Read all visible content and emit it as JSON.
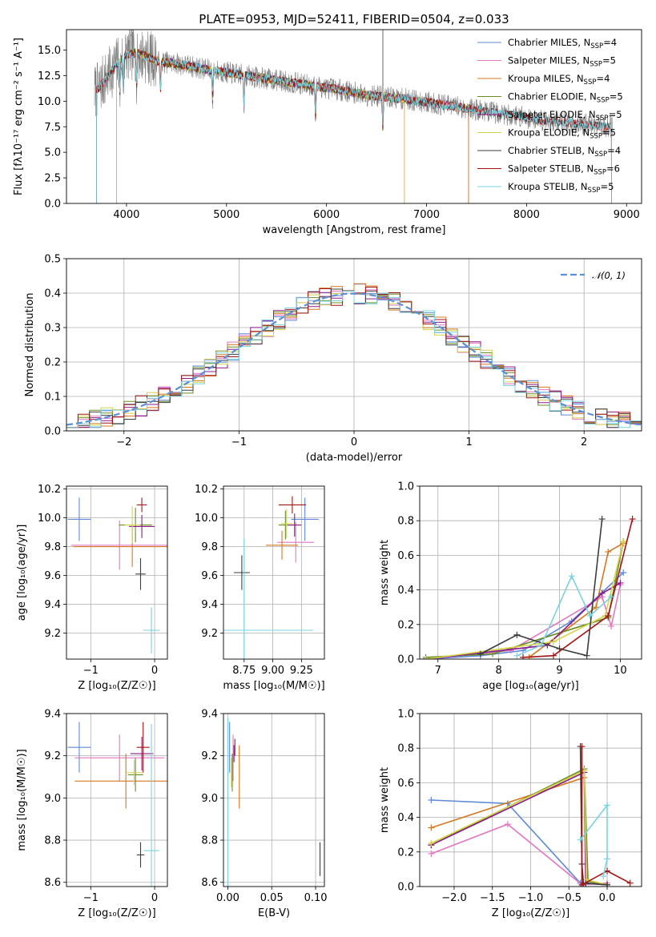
{
  "colors": {
    "Chabrier MILES": "#5f8bd6",
    "Salpeter MILES": "#e377c2",
    "Kroupa MILES": "#d4781d",
    "Chabrier ELODIE": "#6b8e23",
    "Salpeter ELODIE": "#8b1a8b",
    "Kroupa ELODIE": "#d4d44a",
    "Chabrier STELIB": "#3d3d3d",
    "Salpeter STELIB": "#a31515",
    "Kroupa STELIB": "#79d3df",
    "normal": "#5b8fd6",
    "grid": "#b0b0b0",
    "spectrum_data": "#7f7f7f"
  },
  "chart_data": [
    {
      "id": "spectrum",
      "type": "line",
      "title": "PLATE=0953, MJD=52411, FIBERID=0504, z=0.033",
      "xlabel": "wavelength [Angstrom, rest frame]",
      "ylabel": "Flux [fλ10⁻¹⁷ erg cm⁻² s⁻¹ A⁻¹]",
      "xlim": [
        3400,
        9150
      ],
      "ylim": [
        0,
        17
      ],
      "xticks": [
        4000,
        5000,
        6000,
        7000,
        8000,
        9000
      ],
      "yticks": [
        0.0,
        2.5,
        5.0,
        7.5,
        10.0,
        12.5,
        15.0
      ],
      "ytick_labels": [
        "0.0",
        "2.5",
        "5.0",
        "7.5",
        "10.0",
        "12.5",
        "15.0"
      ],
      "grid": false,
      "legend": "upper right",
      "legend_entries": [
        {
          "label": "Chabrier MILES, N",
          "sub": "SSP",
          "tail": "=4",
          "color_key": "Chabrier MILES"
        },
        {
          "label": "Salpeter MILES, N",
          "sub": "SSP",
          "tail": "=5",
          "color_key": "Salpeter MILES"
        },
        {
          "label": "Kroupa MILES, N",
          "sub": "SSP",
          "tail": "=4",
          "color_key": "Kroupa MILES"
        },
        {
          "label": "Chabrier ELODIE, N",
          "sub": "SSP",
          "tail": "=5",
          "color_key": "Chabrier ELODIE"
        },
        {
          "label": "Salpeter ELODIE, N",
          "sub": "SSP",
          "tail": "=5",
          "color_key": "Salpeter ELODIE"
        },
        {
          "label": "Kroupa ELODIE, N",
          "sub": "SSP",
          "tail": "=5",
          "color_key": "Kroupa ELODIE"
        },
        {
          "label": "Chabrier STELIB, N",
          "sub": "SSP",
          "tail": "=4",
          "color_key": "Chabrier STELIB"
        },
        {
          "label": "Salpeter STELIB, N",
          "sub": "SSP",
          "tail": "=6",
          "color_key": "Salpeter STELIB"
        },
        {
          "label": "Kroupa STELIB, N",
          "sub": "SSP",
          "tail": "=5",
          "color_key": "Kroupa STELIB"
        }
      ],
      "continuum": {
        "x": [
          3700,
          3800,
          3900,
          4000,
          4100,
          4200,
          4300,
          4400,
          4500,
          4600,
          4800,
          5000,
          5200,
          5400,
          5600,
          5800,
          6000,
          6200,
          6400,
          6600,
          6800,
          7000,
          7200,
          7400,
          7600,
          7800,
          8000,
          8200,
          8400,
          8600,
          8800
        ],
        "y": [
          11.0,
          12.3,
          13.6,
          14.6,
          14.7,
          14.4,
          13.9,
          13.8,
          13.7,
          13.5,
          13.1,
          12.8,
          12.5,
          12.2,
          11.9,
          11.6,
          11.3,
          11.0,
          10.6,
          10.4,
          10.2,
          9.9,
          9.6,
          9.3,
          9.0,
          8.7,
          8.4,
          8.1,
          7.9,
          7.7,
          7.5
        ]
      },
      "model_ranges": [
        {
          "color_key": "Chabrier MILES",
          "x_start": 3700,
          "x_end": 7420
        },
        {
          "color_key": "Salpeter MILES",
          "x_start": 3700,
          "x_end": 7420
        },
        {
          "color_key": "Kroupa MILES",
          "x_start": 3700,
          "x_end": 7420
        },
        {
          "color_key": "Chabrier ELODIE",
          "x_start": 3900,
          "x_end": 6780
        },
        {
          "color_key": "Salpeter ELODIE",
          "x_start": 3900,
          "x_end": 6780
        },
        {
          "color_key": "Kroupa ELODIE",
          "x_start": 3900,
          "x_end": 6780
        },
        {
          "color_key": "Chabrier STELIB",
          "x_start": 3700,
          "x_end": 8850
        },
        {
          "color_key": "Salpeter STELIB",
          "x_start": 3700,
          "x_end": 8850
        },
        {
          "color_key": "Kroupa STELIB",
          "x_start": 3700,
          "x_end": 8850
        }
      ],
      "absorption_lines": [
        3934,
        3968,
        4102,
        4340,
        4861,
        5175,
        5890,
        6563
      ]
    },
    {
      "id": "residuals",
      "type": "histogram",
      "xlabel": "(data-model)/error",
      "ylabel": "Normed distribution",
      "xlim": [
        -2.5,
        2.5
      ],
      "ylim": [
        0,
        0.5
      ],
      "xticks": [
        -2,
        -1,
        0,
        1,
        2
      ],
      "xtick_labels": [
        "−2",
        "−1",
        "0",
        "1",
        "2"
      ],
      "yticks": [
        0.0,
        0.1,
        0.2,
        0.3,
        0.4,
        0.5
      ],
      "ytick_labels": [
        "0.0",
        "0.1",
        "0.2",
        "0.3",
        "0.4",
        "0.5"
      ],
      "grid": true,
      "legend": "upper right",
      "legend_label": "𝒩(0, 1)",
      "bin_width": 0.1,
      "series_keys": [
        "Chabrier MILES",
        "Salpeter MILES",
        "Kroupa MILES",
        "Chabrier ELODIE",
        "Salpeter ELODIE",
        "Kroupa ELODIE",
        "Chabrier STELIB",
        "Salpeter STELIB",
        "Kroupa STELIB"
      ]
    },
    {
      "id": "age_vs_Z",
      "type": "errorbar",
      "xlabel": "Z [log₁₀(Z/Z☉)]",
      "ylabel": "age  [log₁₀(age/yr)]",
      "xlim": [
        -1.38,
        0.2
      ],
      "ylim": [
        9.02,
        10.22
      ],
      "xticks": [
        -1,
        0
      ],
      "xtick_labels": [
        "−1",
        "0"
      ],
      "yticks": [
        9.2,
        9.4,
        9.6,
        9.8,
        10.0,
        10.2
      ],
      "ytick_labels": [
        "9.2",
        "9.4",
        "9.6",
        "9.8",
        "10.0",
        "10.2"
      ],
      "grid": true,
      "points": [
        {
          "color_key": "Chabrier MILES",
          "x": -1.18,
          "xerr": 0.18,
          "y": 9.99,
          "yerr": 0.15
        },
        {
          "color_key": "Salpeter MILES",
          "x": -0.55,
          "xerr": 0.76,
          "y": 9.81,
          "yerr": 0.17
        },
        {
          "color_key": "Kroupa MILES",
          "x": -0.35,
          "xerr": 0.92,
          "y": 9.8,
          "yerr": 0.14
        },
        {
          "color_key": "Chabrier ELODIE",
          "x": -0.3,
          "xerr": 0.26,
          "y": 9.95,
          "yerr": 0.12
        },
        {
          "color_key": "Salpeter ELODIE",
          "x": -0.2,
          "xerr": 0.2,
          "y": 9.94,
          "yerr": 0.08
        },
        {
          "color_key": "Kroupa ELODIE",
          "x": -0.35,
          "xerr": 0.12,
          "y": 9.95,
          "yerr": 0.13
        },
        {
          "color_key": "Chabrier STELIB",
          "x": -0.22,
          "xerr": 0.08,
          "y": 9.61,
          "yerr": 0.11
        },
        {
          "color_key": "Salpeter STELIB",
          "x": -0.2,
          "xerr": 0.08,
          "y": 10.09,
          "yerr": 0.05
        },
        {
          "color_key": "Kroupa STELIB",
          "x": -0.05,
          "xerr": 0.13,
          "y": 9.22,
          "yerr": 0.16
        }
      ]
    },
    {
      "id": "age_vs_mass",
      "type": "errorbar",
      "xlabel": "mass [log₁₀(M/M☉)]",
      "ylabel": "",
      "xlim": [
        8.57,
        9.45
      ],
      "ylim": [
        9.02,
        10.22
      ],
      "xticks": [
        8.75,
        9.0,
        9.25
      ],
      "xtick_labels": [
        "8.75",
        "9.00",
        "9.25"
      ],
      "yticks": [
        9.2,
        9.4,
        9.6,
        9.8,
        10.0,
        10.2
      ],
      "ytick_labels": [
        "9.2",
        "9.4",
        "9.6",
        "9.8",
        "10.0",
        "10.2"
      ],
      "grid": true,
      "points": [
        {
          "color_key": "Chabrier MILES",
          "x": 9.28,
          "xerr": 0.12,
          "y": 9.99,
          "yerr": 0.15
        },
        {
          "color_key": "Salpeter MILES",
          "x": 9.2,
          "xerr": 0.16,
          "y": 9.83,
          "yerr": 0.14
        },
        {
          "color_key": "Kroupa MILES",
          "x": 9.08,
          "xerr": 0.14,
          "y": 9.81,
          "yerr": 0.1
        },
        {
          "color_key": "Chabrier ELODIE",
          "x": 9.11,
          "xerr": 0.06,
          "y": 9.95,
          "yerr": 0.1
        },
        {
          "color_key": "Salpeter ELODIE",
          "x": 9.19,
          "xerr": 0.06,
          "y": 9.95,
          "yerr": 0.08
        },
        {
          "color_key": "Kroupa ELODIE",
          "x": 9.12,
          "xerr": 0.05,
          "y": 9.96,
          "yerr": 0.1
        },
        {
          "color_key": "Chabrier STELIB",
          "x": 8.73,
          "xerr": 0.07,
          "y": 9.62,
          "yerr": 0.12
        },
        {
          "color_key": "Salpeter STELIB",
          "x": 9.17,
          "xerr": 0.12,
          "y": 10.09,
          "yerr": 0.06
        },
        {
          "color_key": "Kroupa STELIB",
          "x": 8.75,
          "xerr": 0.6,
          "y": 9.22,
          "yerr": 0.64
        }
      ]
    },
    {
      "id": "weight_vs_age",
      "type": "line",
      "xlabel": "age  [log₁₀(age/yr)]",
      "ylabel": "mass weight",
      "xlim": [
        6.7,
        10.35
      ],
      "ylim": [
        0,
        1.0
      ],
      "xticks": [
        7,
        8,
        9,
        10
      ],
      "xtick_labels": [
        "7",
        "8",
        "9",
        "10"
      ],
      "yticks": [
        0.0,
        0.2,
        0.4,
        0.6,
        0.8,
        1.0
      ],
      "ytick_labels": [
        "0.0",
        "0.2",
        "0.4",
        "0.6",
        "0.8",
        "1.0"
      ],
      "grid": true,
      "series": [
        {
          "color_key": "Chabrier MILES",
          "x": [
            6.8,
            7.7,
            8.4,
            9.2,
            10.05
          ],
          "y": [
            0.0,
            0.02,
            0.05,
            0.22,
            0.5
          ]
        },
        {
          "color_key": "Salpeter MILES",
          "x": [
            6.8,
            8.2,
            9.7,
            9.85,
            10.0
          ],
          "y": [
            0.0,
            0.05,
            0.36,
            0.19,
            0.43
          ]
        },
        {
          "color_key": "Kroupa MILES",
          "x": [
            8.5,
            9.6,
            9.8,
            10.05
          ],
          "y": [
            0.01,
            0.3,
            0.62,
            0.67
          ]
        },
        {
          "color_key": "Chabrier ELODIE",
          "x": [
            6.8,
            7.9,
            9.8,
            10.05
          ],
          "y": [
            0.01,
            0.03,
            0.24,
            0.68
          ]
        },
        {
          "color_key": "Salpeter ELODIE",
          "x": [
            6.8,
            8.8,
            9.7,
            10.0
          ],
          "y": [
            0.0,
            0.08,
            0.38,
            0.44
          ]
        },
        {
          "color_key": "Kroupa ELODIE",
          "x": [
            6.8,
            8.9,
            9.75,
            10.05
          ],
          "y": [
            0.0,
            0.1,
            0.25,
            0.68
          ]
        },
        {
          "color_key": "Chabrier STELIB",
          "x": [
            7.7,
            8.3,
            9.0,
            9.45,
            9.7
          ],
          "y": [
            0.03,
            0.14,
            0.06,
            0.02,
            0.81
          ]
        },
        {
          "color_key": "Salpeter STELIB",
          "x": [
            8.4,
            8.9,
            9.8,
            10.2
          ],
          "y": [
            0.01,
            0.02,
            0.25,
            0.81
          ]
        },
        {
          "color_key": "Kroupa STELIB",
          "x": [
            8.3,
            8.7,
            9.2,
            9.5,
            9.85
          ],
          "y": [
            0.02,
            0.08,
            0.48,
            0.25,
            0.36
          ]
        }
      ]
    },
    {
      "id": "mass_vs_Z",
      "type": "errorbar",
      "xlabel": "Z [log₁₀(Z/Z☉)]",
      "ylabel": "mass [log₁₀(M/M☉)]",
      "xlim": [
        -1.38,
        0.2
      ],
      "ylim": [
        8.58,
        9.4
      ],
      "xticks": [
        -1,
        0
      ],
      "xtick_labels": [
        "−1",
        "0"
      ],
      "yticks": [
        8.6,
        8.8,
        9.0,
        9.2,
        9.4
      ],
      "ytick_labels": [
        "8.6",
        "8.8",
        "9.0",
        "9.2",
        "9.4"
      ],
      "grid": true,
      "points": [
        {
          "color_key": "Chabrier MILES",
          "x": -1.18,
          "xerr": 0.18,
          "y": 9.24,
          "yerr": 0.12
        },
        {
          "color_key": "Salpeter MILES",
          "x": -0.55,
          "xerr": 0.7,
          "y": 9.19,
          "yerr": 0.11
        },
        {
          "color_key": "Kroupa MILES",
          "x": -0.45,
          "xerr": 0.8,
          "y": 9.08,
          "yerr": 0.13
        },
        {
          "color_key": "Chabrier ELODIE",
          "x": -0.3,
          "xerr": 0.12,
          "y": 9.11,
          "yerr": 0.08
        },
        {
          "color_key": "Salpeter ELODIE",
          "x": -0.2,
          "xerr": 0.18,
          "y": 9.21,
          "yerr": 0.08
        },
        {
          "color_key": "Kroupa ELODIE",
          "x": -0.32,
          "xerr": 0.12,
          "y": 9.12,
          "yerr": 0.06
        },
        {
          "color_key": "Chabrier STELIB",
          "x": -0.22,
          "xerr": 0.06,
          "y": 8.73,
          "yerr": 0.06
        },
        {
          "color_key": "Salpeter STELIB",
          "x": -0.18,
          "xerr": 0.1,
          "y": 9.24,
          "yerr": 0.12
        },
        {
          "color_key": "Kroupa STELIB",
          "x": -0.05,
          "xerr": 0.12,
          "y": 8.75,
          "yerr": 0.6
        }
      ]
    },
    {
      "id": "mass_vs_ebv",
      "type": "errorbar",
      "xlabel": "E(B-V)",
      "ylabel": "",
      "xlim": [
        -0.005,
        0.11
      ],
      "ylim": [
        8.58,
        9.4
      ],
      "xticks": [
        0.0,
        0.05,
        0.1
      ],
      "xtick_labels": [
        "0.00",
        "0.05",
        "0.10"
      ],
      "yticks": [
        8.6,
        8.8,
        9.0,
        9.2,
        9.4
      ],
      "ytick_labels": [
        "8.6",
        "8.8",
        "9.0",
        "9.2",
        "9.4"
      ],
      "grid": true,
      "points": [
        {
          "color_key": "Chabrier MILES",
          "x": 0.002,
          "xerr": 0.0,
          "y": 9.24,
          "yerr": 0.12
        },
        {
          "color_key": "Salpeter MILES",
          "x": 0.006,
          "xerr": 0.0,
          "y": 9.19,
          "yerr": 0.11
        },
        {
          "color_key": "Kroupa MILES",
          "x": 0.013,
          "xerr": 0.0,
          "y": 9.1,
          "yerr": 0.15
        },
        {
          "color_key": "Chabrier ELODIE",
          "x": 0.005,
          "xerr": 0.0,
          "y": 9.12,
          "yerr": 0.09
        },
        {
          "color_key": "Salpeter ELODIE",
          "x": 0.007,
          "xerr": 0.0,
          "y": 9.21,
          "yerr": 0.04
        },
        {
          "color_key": "Kroupa ELODIE",
          "x": 0.004,
          "xerr": 0.0,
          "y": 9.12,
          "yerr": 0.07
        },
        {
          "color_key": "Chabrier STELIB",
          "x": 0.105,
          "xerr": 0.0,
          "y": 8.71,
          "yerr": 0.08
        },
        {
          "color_key": "Salpeter STELIB",
          "x": 0.008,
          "xerr": 0.0,
          "y": 9.24,
          "yerr": 0.04
        },
        {
          "color_key": "Kroupa STELIB",
          "x": 0.0,
          "xerr": 0.0,
          "y": 8.98,
          "yerr": 0.4
        }
      ]
    },
    {
      "id": "weight_vs_Z",
      "type": "line",
      "xlabel": "Z [log₁₀(Z/Z☉)]",
      "ylabel": "mass weight",
      "xlim": [
        -2.45,
        0.45
      ],
      "ylim": [
        0,
        1.0
      ],
      "xticks": [
        -2.0,
        -1.5,
        -1.0,
        -0.5,
        0.0
      ],
      "xtick_labels": [
        "−2.0",
        "−1.5",
        "−1.0",
        "−0.5",
        "0.0"
      ],
      "yticks": [
        0.0,
        0.2,
        0.4,
        0.6,
        0.8,
        1.0
      ],
      "ytick_labels": [
        "0.0",
        "0.2",
        "0.4",
        "0.6",
        "0.8",
        "1.0"
      ],
      "grid": true,
      "series": [
        {
          "color_key": "Chabrier MILES",
          "x": [
            -2.3,
            -1.3,
            -0.35,
            0.0
          ],
          "y": [
            0.5,
            0.48,
            0.02,
            0.01
          ]
        },
        {
          "color_key": "Salpeter MILES",
          "x": [
            -2.3,
            -1.3,
            -0.33,
            0.0
          ],
          "y": [
            0.19,
            0.36,
            0.01,
            0.02
          ]
        },
        {
          "color_key": "Kroupa MILES",
          "x": [
            -2.3,
            -0.3,
            -0.28,
            0.0
          ],
          "y": [
            0.34,
            0.63,
            0.02,
            0.01
          ]
        },
        {
          "color_key": "Chabrier ELODIE",
          "x": [
            -2.3,
            -0.3,
            -0.25,
            0.0
          ],
          "y": [
            0.24,
            0.68,
            0.03,
            0.01
          ]
        },
        {
          "color_key": "Salpeter ELODIE",
          "x": [
            -2.3,
            -0.3,
            -0.28,
            0.0
          ],
          "y": [
            0.24,
            0.66,
            0.02,
            0.01
          ]
        },
        {
          "color_key": "Kroupa ELODIE",
          "x": [
            -2.3,
            -0.3,
            -0.27,
            0.0
          ],
          "y": [
            0.25,
            0.67,
            0.04,
            0.01
          ]
        },
        {
          "color_key": "Chabrier STELIB",
          "x": [
            -0.35,
            -0.33,
            -0.31,
            0.0
          ],
          "y": [
            0.81,
            0.13,
            0.02,
            0.01
          ]
        },
        {
          "color_key": "Salpeter STELIB",
          "x": [
            -0.33,
            -0.33,
            0.0,
            0.3
          ],
          "y": [
            0.81,
            0.01,
            0.09,
            0.02
          ]
        },
        {
          "color_key": "Kroupa STELIB",
          "x": [
            -0.35,
            0.0,
            0.0,
            -0.05
          ],
          "y": [
            0.27,
            0.47,
            0.16,
            0.06
          ]
        }
      ]
    }
  ]
}
